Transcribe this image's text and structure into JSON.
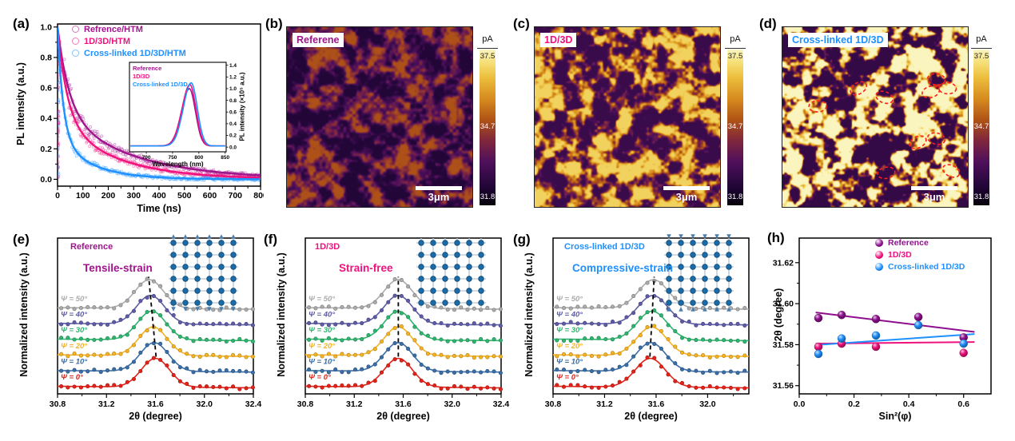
{
  "figure": {
    "background": "#ffffff",
    "panel_letters": {
      "a": "(a)",
      "b": "(b)",
      "c": "(c)",
      "d": "(d)",
      "e": "(e)",
      "f": "(f)",
      "g": "(g)",
      "h": "(h)"
    }
  },
  "chart_data": [
    {
      "panel": "a",
      "type": "line",
      "kind": "decay",
      "xlabel": "Time (ns)",
      "ylabel": "PL intensity (a.u.)",
      "xlim": [
        0,
        800
      ],
      "ylim": [
        -0.045,
        1.02
      ],
      "xticks": [
        0,
        100,
        200,
        300,
        400,
        500,
        600,
        700,
        800
      ],
      "yticks": [
        0.0,
        0.2,
        0.4,
        0.6,
        0.8,
        1.0
      ],
      "series": [
        {
          "name": "Refrence/HTM",
          "color": "#A0148C",
          "a1": 0.55,
          "t1": 45,
          "a2": 0.45,
          "t2": 280
        },
        {
          "name": "1D/3D/HTM",
          "color": "#F0117E",
          "a1": 0.6,
          "t1": 38,
          "a2": 0.4,
          "t2": 220
        },
        {
          "name": "Cross-linked 1D/3D/HTM",
          "color": "#1E90FF",
          "a1": 0.72,
          "t1": 22,
          "a2": 0.28,
          "t2": 130
        }
      ],
      "inset": {
        "xlabel": "Wavelength (nm)",
        "ylabel": "PL intensity (×10⁵ a.u.)",
        "xlim": [
          668,
          852
        ],
        "ylim": [
          -0.08,
          1.45
        ],
        "xticks": [
          700,
          750,
          800,
          850
        ],
        "yticks": [
          0.0,
          0.2,
          0.4,
          0.6,
          0.8,
          1.0,
          1.2,
          1.4
        ],
        "series": [
          {
            "name": "Reference",
            "color": "#A0148C",
            "center": 782,
            "height": 1.0
          },
          {
            "name": "1D/3D",
            "color": "#F0117E",
            "center": 783,
            "height": 1.07
          },
          {
            "name": "Cross-linked 1D/3D",
            "color": "#1E90FF",
            "center": 785.5,
            "height": 1.1
          }
        ]
      }
    },
    {
      "panel": "b",
      "type": "heatmap",
      "label": "Referene",
      "label_color": "#A0148C",
      "colorbar": {
        "title": "pA",
        "tick_top": "37.5",
        "tick_mid": "34.7",
        "tick_bottom": "31.8"
      },
      "scalebar": "3μm",
      "seed": 11,
      "offset": 0.12,
      "gain": 0.42,
      "c0": 0.25,
      "c1": 0.8
    },
    {
      "panel": "c",
      "type": "heatmap",
      "label": "1D/3D",
      "label_color": "#F0117E",
      "colorbar": {
        "title": "pA",
        "tick_top": "37.5",
        "tick_mid": "34.7",
        "tick_bottom": "31.8"
      },
      "scalebar": "3μm",
      "seed": 23,
      "offset": 0.2,
      "gain": 0.68,
      "c0": 0.3,
      "c1": 0.72
    },
    {
      "panel": "d",
      "type": "heatmap",
      "label": "Cross-linked 1D/3D",
      "label_color": "#1E90FF",
      "colorbar": {
        "title": "pA",
        "tick_top": "37.5",
        "tick_mid": "34.7",
        "tick_bottom": "31.8"
      },
      "scalebar": "3μm",
      "seed": 37,
      "offset": 0.18,
      "gain": 0.82,
      "c0": 0.36,
      "c1": 0.64,
      "circle_color": "#FF1E1E",
      "circles": [
        [
          0.41,
          0.34
        ],
        [
          0.83,
          0.29
        ],
        [
          0.8,
          0.36
        ],
        [
          0.55,
          0.39
        ],
        [
          0.19,
          0.44
        ],
        [
          0.73,
          0.64
        ],
        [
          0.83,
          0.62
        ],
        [
          0.56,
          0.81
        ],
        [
          0.91,
          0.8
        ],
        [
          0.89,
          0.34
        ]
      ]
    },
    {
      "panel": "e",
      "type": "line",
      "kind": "xrd",
      "sample": "Reference",
      "sample_color": "#A0148C",
      "strain": "Tensile-strain",
      "xlabel": "2θ (degree)",
      "ylabel": "Normalized intensity (a.u.)",
      "xlim": [
        30.8,
        32.4
      ],
      "xticks": [
        30.8,
        31.2,
        31.6,
        32.0,
        32.4
      ],
      "psi_series": [
        {
          "name": "Ψ = 0°",
          "color": "#E32219",
          "center": 31.6
        },
        {
          "name": "Ψ = 10°",
          "color": "#3A6EA8",
          "center": 31.59
        },
        {
          "name": "Ψ = 20°",
          "color": "#F5B324",
          "center": 31.58
        },
        {
          "name": "Ψ = 30°",
          "color": "#2FB56F",
          "center": 31.57
        },
        {
          "name": "Ψ = 40°",
          "color": "#5E5CA7",
          "center": 31.56
        },
        {
          "name": "Ψ = 50°",
          "color": "#ABABAB",
          "center": 31.55
        }
      ],
      "dash": {
        "x_bottom": 31.605,
        "x_top": 31.545
      },
      "lattice_arrows": "out",
      "seed": 4
    },
    {
      "panel": "f",
      "type": "line",
      "kind": "xrd",
      "sample": "1D/3D",
      "sample_color": "#F0117E",
      "strain": "Strain-free",
      "xlabel": "2θ (degree)",
      "ylabel": "Normalized intensity (a.u.)",
      "xlim": [
        30.8,
        32.4
      ],
      "xticks": [
        30.8,
        31.2,
        31.6,
        32.0,
        32.4
      ],
      "psi_series": [
        {
          "name": "Ψ = 0°",
          "color": "#E32219",
          "center": 31.56
        },
        {
          "name": "Ψ = 10°",
          "color": "#3A6EA8",
          "center": 31.56
        },
        {
          "name": "Ψ = 20°",
          "color": "#F5B324",
          "center": 31.56
        },
        {
          "name": "Ψ = 30°",
          "color": "#2FB56F",
          "center": 31.56
        },
        {
          "name": "Ψ = 40°",
          "color": "#5E5CA7",
          "center": 31.56
        },
        {
          "name": "Ψ = 50°",
          "color": "#ABABAB",
          "center": 31.56
        }
      ],
      "dash": {
        "x_bottom": 31.56,
        "x_top": 31.56
      },
      "lattice_arrows": "none",
      "seed": 5
    },
    {
      "panel": "g",
      "type": "line",
      "kind": "xrd",
      "sample": "Cross-linked 1D/3D",
      "sample_color": "#1E90FF",
      "strain": "Compressive-strain",
      "xlabel": "2θ (degree)",
      "ylabel": "Normalized intensity (a.u.)",
      "xlim": [
        30.8,
        32.32
      ],
      "xticks": [
        30.8,
        31.2,
        31.6,
        32.0
      ],
      "psi_series": [
        {
          "name": "Ψ = 0°",
          "color": "#E32219",
          "center": 31.555
        },
        {
          "name": "Ψ = 10°",
          "color": "#3A6EA8",
          "center": 31.56
        },
        {
          "name": "Ψ = 20°",
          "color": "#F5B324",
          "center": 31.565
        },
        {
          "name": "Ψ = 30°",
          "color": "#2FB56F",
          "center": 31.57
        },
        {
          "name": "Ψ = 40°",
          "color": "#5E5CA7",
          "center": 31.575
        },
        {
          "name": "Ψ = 50°",
          "color": "#ABABAB",
          "center": 31.58
        }
      ],
      "dash": {
        "x_bottom": 31.552,
        "x_top": 31.585
      },
      "lattice_arrows": "in",
      "seed": 6
    },
    {
      "panel": "h",
      "type": "scatter",
      "xlabel": "Sin²(φ)",
      "ylabel": "2θ (degree)",
      "xlim": [
        0.0,
        0.7
      ],
      "xticks": [
        0.0,
        0.2,
        0.4,
        0.6
      ],
      "ylim": [
        31.556,
        31.632
      ],
      "yticks": [
        31.56,
        31.58,
        31.6,
        31.62
      ],
      "series": [
        {
          "name": "Reference",
          "color": "#8E0F8E",
          "points": [
            [
              0.07,
              31.593
            ],
            [
              0.155,
              31.5945
            ],
            [
              0.28,
              31.5925
            ],
            [
              0.435,
              31.5935
            ],
            [
              0.6,
              31.5835
            ]
          ],
          "fit": [
            [
              0.06,
              31.5957
            ],
            [
              0.64,
              31.5862
            ]
          ]
        },
        {
          "name": "1D/3D",
          "color": "#F0117E",
          "points": [
            [
              0.07,
              31.579
            ],
            [
              0.155,
              31.5805
            ],
            [
              0.28,
              31.579
            ],
            [
              0.6,
              31.576
            ]
          ],
          "fit": [
            [
              0.06,
              31.5805
            ],
            [
              0.64,
              31.5813
            ]
          ]
        },
        {
          "name": "Cross-linked 1D/3D",
          "color": "#1E90FF",
          "points": [
            [
              0.07,
              31.5755
            ],
            [
              0.155,
              31.583
            ],
            [
              0.28,
              31.5845
            ],
            [
              0.435,
              31.5895
            ],
            [
              0.6,
              31.5805
            ]
          ],
          "fit": [
            [
              0.06,
              31.5798
            ],
            [
              0.64,
              31.5852
            ]
          ]
        }
      ]
    }
  ]
}
